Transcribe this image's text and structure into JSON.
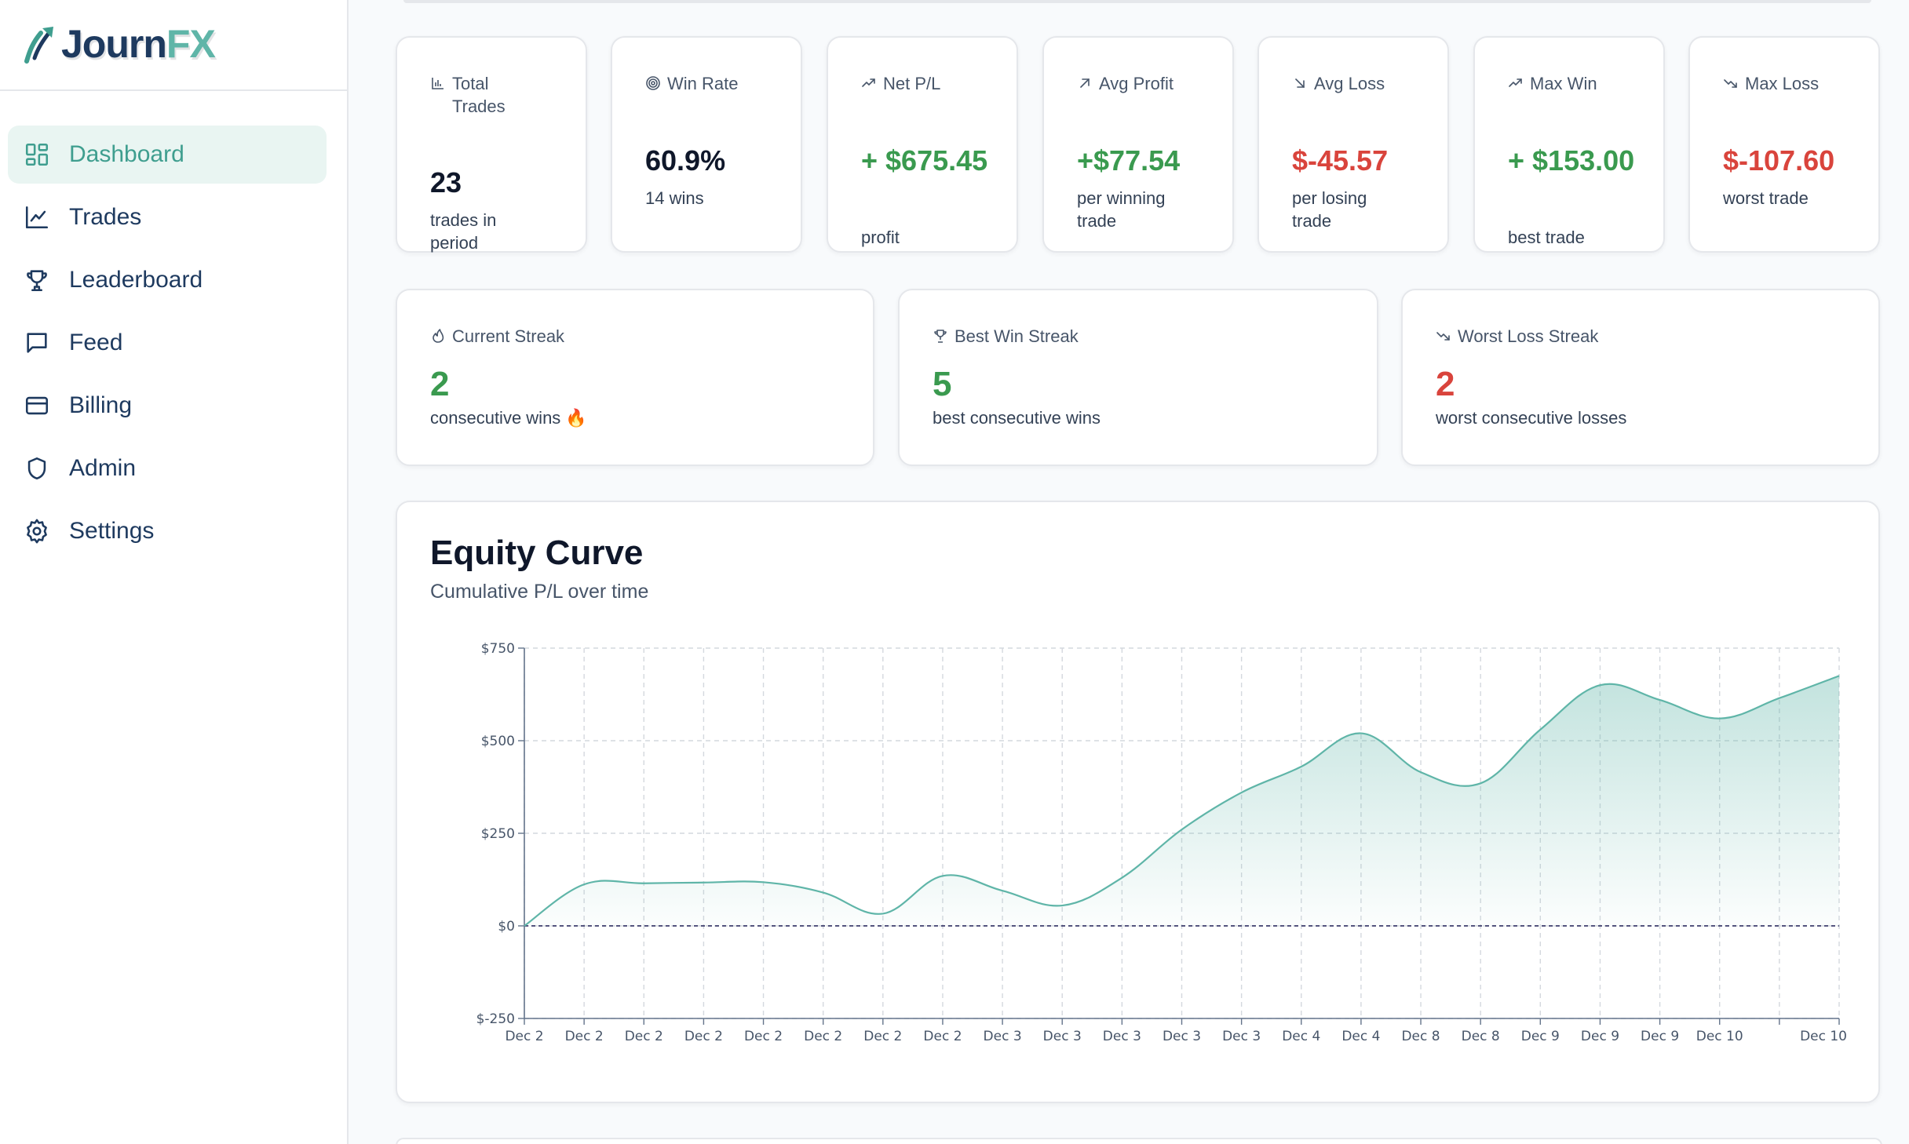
{
  "brand": {
    "part1": "Journ",
    "part2": "FX"
  },
  "sidebar": {
    "items": [
      {
        "label": "Dashboard",
        "icon": "layout-dashboard-icon",
        "active": true
      },
      {
        "label": "Trades",
        "icon": "line-chart-icon"
      },
      {
        "label": "Leaderboard",
        "icon": "trophy-icon"
      },
      {
        "label": "Feed",
        "icon": "message-square-icon"
      },
      {
        "label": "Billing",
        "icon": "credit-card-icon"
      },
      {
        "label": "Admin",
        "icon": "shield-icon"
      },
      {
        "label": "Settings",
        "icon": "gear-icon"
      }
    ]
  },
  "stats": [
    {
      "label": "Total Trades",
      "value": "23",
      "sub": "trades in period",
      "icon": "bar-chart-icon",
      "tone": "dark"
    },
    {
      "label": "Win Rate",
      "value": "60.9%",
      "sub": "14 wins",
      "icon": "target-icon",
      "tone": "dark"
    },
    {
      "label": "Net P/L",
      "value": "+ $675.45",
      "sub": "profit",
      "icon": "trending-up-icon",
      "tone": "green"
    },
    {
      "label": "Avg Profit",
      "value": "+$77.54",
      "sub": "per winning trade",
      "icon": "arrow-up-right-icon",
      "tone": "green"
    },
    {
      "label": "Avg Loss",
      "value": "$-45.57",
      "sub": "per losing trade",
      "icon": "arrow-down-right-icon",
      "tone": "red"
    },
    {
      "label": "Max Win",
      "value": "+ $153.00",
      "sub": "best trade",
      "icon": "trending-up-icon",
      "tone": "green"
    },
    {
      "label": "Max Loss",
      "value": "$-107.60",
      "sub": "worst trade",
      "icon": "trending-down-icon",
      "tone": "red"
    }
  ],
  "streaks": [
    {
      "label": "Current Streak",
      "value": "2",
      "sub": "consecutive wins 🔥",
      "icon": "flame-icon",
      "tone": "green"
    },
    {
      "label": "Best Win Streak",
      "value": "5",
      "sub": "best consecutive wins",
      "icon": "trophy-icon",
      "tone": "green"
    },
    {
      "label": "Worst Loss Streak",
      "value": "2",
      "sub": "worst consecutive losses",
      "icon": "trending-down-icon",
      "tone": "red"
    }
  ],
  "equity": {
    "title": "Equity Curve",
    "subtitle": "Cumulative P/L over time"
  },
  "chart_data": {
    "type": "area",
    "title": "Equity Curve",
    "subtitle": "Cumulative P/L over time",
    "xlabel": "",
    "ylabel": "",
    "categories": [
      "Dec 2",
      "Dec 2",
      "Dec 2",
      "Dec 2",
      "Dec 2",
      "Dec 2",
      "Dec 2",
      "Dec 2",
      "Dec 3",
      "Dec 3",
      "Dec 3",
      "Dec 3",
      "Dec 3",
      "Dec 4",
      "Dec 4",
      "Dec 8",
      "Dec 8",
      "Dec 9",
      "Dec 9",
      "Dec 9",
      "Dec 10",
      "Dec 10",
      "Dec 10"
    ],
    "x_tick_labels": [
      "Dec 2",
      "Dec 2",
      "Dec 2",
      "Dec 2",
      "Dec 2",
      "Dec 2",
      "Dec 2",
      "Dec 2",
      "Dec 3",
      "Dec 3",
      "Dec 3",
      "Dec 3",
      "Dec 3",
      "Dec 4",
      "Dec 4",
      "Dec 8",
      "Dec 8",
      "Dec 9",
      "Dec 9",
      "Dec 9",
      "Dec 10",
      "Dec 10"
    ],
    "values": [
      0,
      112,
      115,
      117,
      118,
      90,
      33,
      135,
      95,
      55,
      130,
      260,
      360,
      430,
      520,
      415,
      385,
      530,
      650,
      610,
      560,
      615,
      675
    ],
    "yticks": [
      "$750",
      "$500",
      "$250",
      "$0",
      "$-250"
    ],
    "ylim": [
      -250,
      750
    ],
    "grid": true,
    "zero_line": true,
    "colors": {
      "line": "#5fb5a8",
      "fill": "#5fb5a8",
      "zero": "#3f3f6e"
    }
  }
}
